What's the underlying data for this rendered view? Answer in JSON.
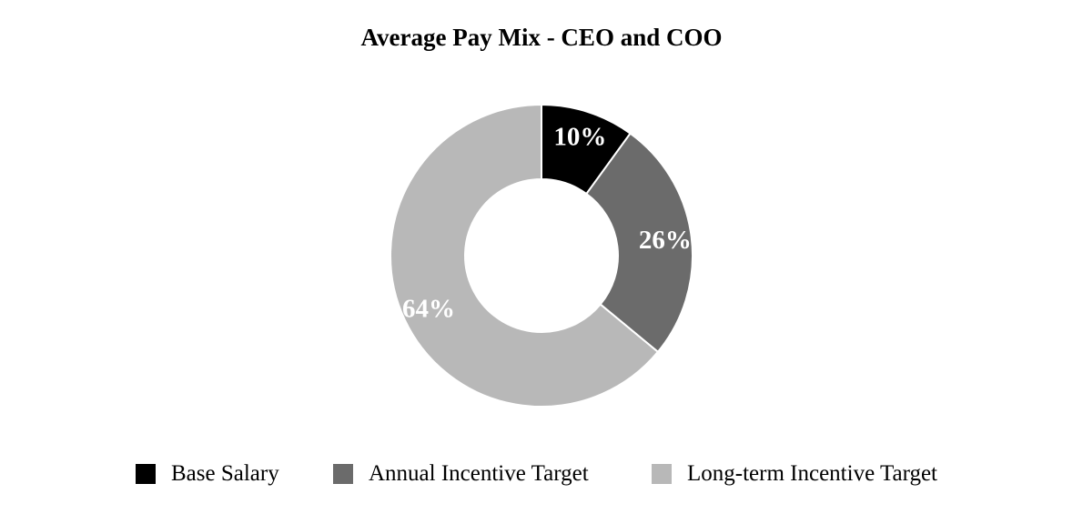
{
  "chart_data": {
    "type": "pie",
    "variant": "donut",
    "title": "Average Pay Mix - CEO and COO",
    "categories": [
      "Base Salary",
      "Annual Incentive Target",
      "Long-term Incentive Target"
    ],
    "values": [
      10,
      26,
      64
    ],
    "data_labels": [
      "10%",
      "26%",
      "64%"
    ],
    "colors": [
      "#000000",
      "#6b6b6b",
      "#b8b8b8"
    ],
    "legend": {
      "placement": "bottom",
      "entries": [
        "Base Salary",
        "Annual Incentive Target",
        "Long-term Incentive Target"
      ]
    }
  }
}
